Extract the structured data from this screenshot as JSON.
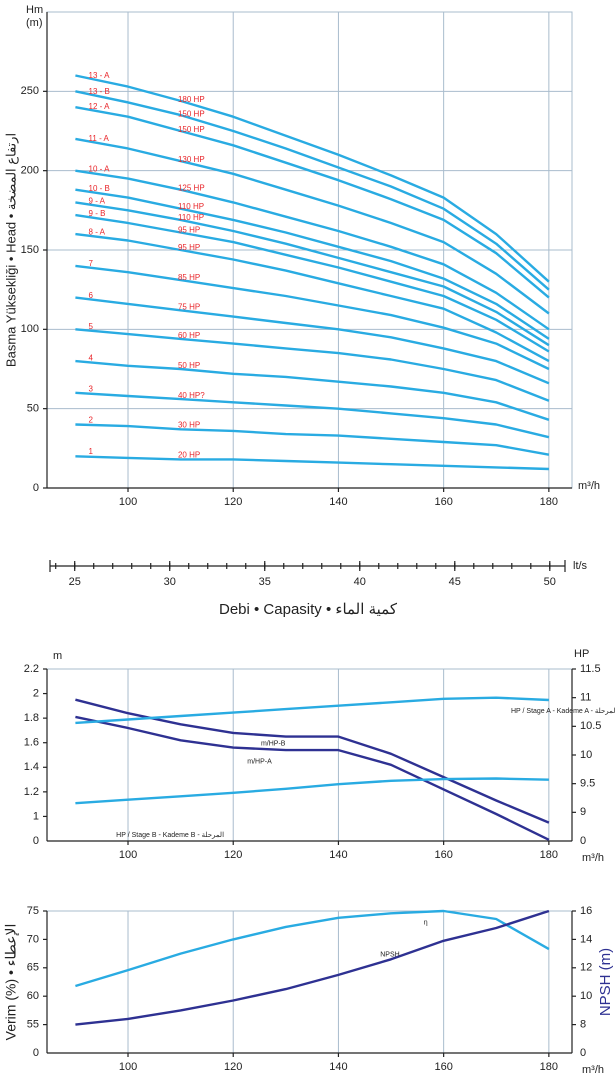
{
  "chart_data": [
    {
      "type": "line",
      "ylabel_lines": [
        "Hm",
        "(m)"
      ],
      "xlabel": "m³/h",
      "ytitle": "Basma Yüksekliği • Head • ارتفاع المضخة",
      "grid": "both",
      "color": "#29abe2",
      "label_color": "#e8262b",
      "x": [
        90,
        100,
        110,
        120,
        130,
        140,
        150,
        160,
        170,
        180
      ],
      "xlim": [
        84.6,
        184.4
      ],
      "ylim": [
        0,
        300
      ],
      "xticks": [
        100,
        120,
        140,
        160,
        180
      ],
      "yticks": [
        0,
        50,
        100,
        150,
        200,
        250
      ],
      "series": [
        {
          "name": "13 - A",
          "hp": "180 HP",
          "values": [
            260,
            253,
            244,
            234,
            222,
            210,
            197,
            183,
            160,
            130
          ]
        },
        {
          "name": "13 - B",
          "hp": "150 HP",
          "values": [
            250,
            243,
            235,
            225,
            214,
            202,
            190,
            176,
            154,
            125
          ]
        },
        {
          "name": "12 - A",
          "hp": "150 HP",
          "values": [
            240,
            234,
            225,
            216,
            205,
            194,
            182,
            169,
            148,
            120
          ]
        },
        {
          "name": "11 - A",
          "hp": "130 HP",
          "values": [
            220,
            214,
            206,
            198,
            188,
            178,
            167,
            155,
            135,
            110
          ]
        },
        {
          "name": "10 - A",
          "hp": "125 HP",
          "values": [
            200,
            195,
            188,
            180,
            171,
            162,
            152,
            141,
            123,
            100
          ]
        },
        {
          "name": "10 - B",
          "hp": "110 HP",
          "values": [
            188,
            183,
            176,
            169,
            161,
            152,
            143,
            132,
            116,
            94
          ]
        },
        {
          "name": "9 - A",
          "hp": "110 HP",
          "values": [
            180,
            175,
            169,
            162,
            154,
            145,
            136,
            127,
            111,
            90
          ]
        },
        {
          "name": "9 - B",
          "hp": "95 HP",
          "values": [
            172,
            167,
            161,
            155,
            147,
            139,
            130,
            121,
            106,
            86
          ]
        },
        {
          "name": "8 - A",
          "hp": "95 HP",
          "values": [
            160,
            156,
            150,
            144,
            137,
            129,
            121,
            113,
            98,
            80
          ]
        },
        {
          "name": "7",
          "hp": "85 HP",
          "values": [
            140,
            136,
            131,
            126,
            121,
            115,
            109,
            101,
            91,
            75
          ]
        },
        {
          "name": "6",
          "hp": "75 HP",
          "values": [
            120,
            116,
            112,
            108,
            104,
            100,
            95,
            88,
            80,
            66
          ]
        },
        {
          "name": "5",
          "hp": "60 HP",
          "values": [
            100,
            97,
            94,
            91,
            88,
            85,
            81,
            75,
            68,
            55
          ]
        },
        {
          "name": "4",
          "hp": "50 HP",
          "values": [
            80,
            77,
            75,
            72,
            70,
            67,
            64,
            60,
            54,
            43
          ]
        },
        {
          "name": "3",
          "hp": "40 HP?",
          "values": [
            60,
            58,
            56,
            54,
            52,
            50,
            47,
            44,
            40,
            32
          ]
        },
        {
          "name": "2",
          "hp": "30 HP",
          "values": [
            40,
            39,
            37,
            36,
            34,
            33,
            31,
            29,
            27,
            21
          ]
        },
        {
          "name": "1",
          "hp": "20 HP",
          "values": [
            20,
            19,
            18,
            18,
            17,
            16,
            15,
            14,
            13,
            12
          ]
        }
      ]
    },
    {
      "type": "scale",
      "xlabel": "lt/s",
      "title": "Debi • Capasity • كمية الماء",
      "xlim": [
        23.7,
        50.8
      ],
      "xticks": [
        25,
        30,
        35,
        40,
        45,
        50
      ],
      "xminorticks": [
        24,
        25,
        26,
        27,
        28,
        29,
        30,
        31,
        32,
        33,
        34,
        35,
        36,
        37,
        38,
        39,
        40,
        41,
        42,
        43,
        44,
        45,
        46,
        47,
        48,
        49,
        50
      ]
    },
    {
      "type": "line",
      "ylabel": "m",
      "y2label": "HP",
      "xlabel": "m³/h",
      "grid": "x",
      "x": [
        90,
        100,
        110,
        120,
        130,
        140,
        150,
        160,
        170,
        180
      ],
      "xlim": [
        84.6,
        184.4
      ],
      "xticks": [
        100,
        120,
        140,
        160,
        180
      ],
      "ylim": [
        0.8,
        2.2
      ],
      "yticks": [
        1,
        1.2,
        1.4,
        1.6,
        1.8,
        2,
        2.2
      ],
      "y_origin_label": "0",
      "y2lim": [
        8.5,
        11.5
      ],
      "y2ticks": [
        9,
        9.5,
        10,
        10.5,
        11,
        11.5
      ],
      "y2_origin_label": "0",
      "series": [
        {
          "name": "m/HP-B",
          "color": "#2e3192",
          "values": [
            1.95,
            1.84,
            1.75,
            1.68,
            1.65,
            1.65,
            1.51,
            1.32,
            1.13,
            0.95
          ]
        },
        {
          "name": "m/HP-A",
          "color": "#2e3192",
          "values": [
            1.81,
            1.72,
            1.62,
            1.56,
            1.54,
            1.54,
            1.42,
            1.22,
            1.02,
            0.81
          ]
        },
        {
          "name": "HP / Stage A - Kademe A - المرحلة",
          "color": "#29abe2",
          "axis": "y2",
          "values": [
            10.56,
            10.62,
            10.68,
            10.74,
            10.8,
            10.86,
            10.92,
            10.98,
            11.0,
            10.96
          ]
        },
        {
          "name": "HP / Stage B - Kademe B - المرحلة",
          "color": "#29abe2",
          "axis": "y2",
          "values": [
            9.16,
            9.22,
            9.28,
            9.34,
            9.41,
            9.49,
            9.55,
            9.58,
            9.59,
            9.57
          ]
        }
      ]
    },
    {
      "type": "line",
      "ytitle": "Verim (%) • الإعطاء",
      "y2title": "NPSH (m)",
      "xlabel": "m³/h",
      "grid": "x",
      "x": [
        90,
        100,
        110,
        120,
        130,
        140,
        150,
        160,
        170,
        180
      ],
      "xlim": [
        84.6,
        184.4
      ],
      "xticks": [
        100,
        120,
        140,
        160,
        180
      ],
      "ylim": [
        50,
        75
      ],
      "yticks": [
        55,
        60,
        65,
        70,
        75
      ],
      "y_origin_label": "0",
      "y2lim": [
        6,
        16
      ],
      "y2ticks": [
        8,
        10,
        12,
        14,
        16
      ],
      "y2_origin_label": "0",
      "series": [
        {
          "name": "η",
          "color": "#29abe2",
          "values": [
            61.8,
            64.6,
            67.5,
            70,
            72.2,
            73.8,
            74.6,
            75,
            73.6,
            68.3
          ]
        },
        {
          "name": "NPSH",
          "color": "#2e3192",
          "axis": "y2",
          "values": [
            8,
            8.4,
            9.0,
            9.7,
            10.5,
            11.5,
            12.6,
            13.9,
            14.8,
            16
          ]
        }
      ]
    }
  ]
}
